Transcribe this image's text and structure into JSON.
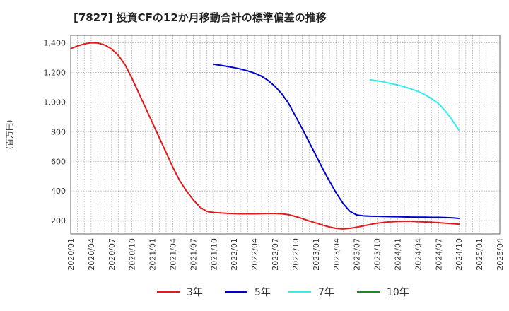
{
  "chart_data": {
    "type": "line",
    "title": "[7827]  投資CFの12か月移動合計の標準偏差の推移",
    "ylabel": "(百万円)",
    "xlabel": "",
    "ylim": [
      110,
      1450
    ],
    "yticks": [
      200,
      400,
      600,
      800,
      1000,
      1200,
      1400
    ],
    "ytick_labels": [
      "200",
      "400",
      "600",
      "800",
      "1,000",
      "1,200",
      "1,400"
    ],
    "x_range": [
      "2020-01",
      "2025-04"
    ],
    "x_ticks": [
      "2020/01",
      "2020/04",
      "2020/07",
      "2020/10",
      "2021/01",
      "2021/04",
      "2021/07",
      "2021/10",
      "2022/01",
      "2022/04",
      "2022/07",
      "2022/10",
      "2023/01",
      "2023/04",
      "2023/07",
      "2023/10",
      "2024/01",
      "2024/04",
      "2024/07",
      "2024/10",
      "2025/01",
      "2025/04"
    ],
    "grid": true,
    "legend_position": "bottom",
    "series": [
      {
        "name": "3年",
        "color": "#e41a1c",
        "x": [
          "2020-01",
          "2020-02",
          "2020-03",
          "2020-04",
          "2020-05",
          "2020-06",
          "2020-07",
          "2020-08",
          "2020-09",
          "2020-10",
          "2020-11",
          "2020-12",
          "2021-01",
          "2021-02",
          "2021-03",
          "2021-04",
          "2021-05",
          "2021-06",
          "2021-07",
          "2021-08",
          "2021-09",
          "2021-10",
          "2021-11",
          "2021-12",
          "2022-01",
          "2022-02",
          "2022-03",
          "2022-04",
          "2022-05",
          "2022-06",
          "2022-07",
          "2022-08",
          "2022-09",
          "2022-10",
          "2022-11",
          "2022-12",
          "2023-01",
          "2023-02",
          "2023-03",
          "2023-04",
          "2023-05",
          "2023-06",
          "2023-07",
          "2023-08",
          "2023-09",
          "2023-10",
          "2023-11",
          "2023-12",
          "2024-01",
          "2024-02",
          "2024-03",
          "2024-04",
          "2024-05",
          "2024-06",
          "2024-07",
          "2024-08",
          "2024-09",
          "2024-10"
        ],
        "values": [
          1360,
          1378,
          1392,
          1400,
          1398,
          1385,
          1358,
          1315,
          1250,
          1160,
          1060,
          960,
          860,
          760,
          660,
          560,
          470,
          400,
          340,
          290,
          262,
          255,
          252,
          249,
          247,
          246,
          246,
          246,
          247,
          248,
          248,
          246,
          240,
          228,
          214,
          198,
          184,
          170,
          157,
          147,
          144,
          148,
          156,
          165,
          174,
          183,
          188,
          192,
          194,
          195,
          195,
          193,
          191,
          189,
          186,
          183,
          180,
          176
        ]
      },
      {
        "name": "5年",
        "color": "#0000cc",
        "x": [
          "2021-10",
          "2021-11",
          "2021-12",
          "2022-01",
          "2022-02",
          "2022-03",
          "2022-04",
          "2022-05",
          "2022-06",
          "2022-07",
          "2022-08",
          "2022-09",
          "2022-10",
          "2022-11",
          "2022-12",
          "2023-01",
          "2023-02",
          "2023-03",
          "2023-04",
          "2023-05",
          "2023-06",
          "2023-07",
          "2023-08",
          "2023-09",
          "2023-10",
          "2023-11",
          "2023-12",
          "2024-01",
          "2024-02",
          "2024-03",
          "2024-04",
          "2024-05",
          "2024-06",
          "2024-07",
          "2024-08",
          "2024-09",
          "2024-10"
        ],
        "values": [
          1255,
          1248,
          1240,
          1232,
          1222,
          1210,
          1195,
          1175,
          1145,
          1105,
          1055,
          990,
          905,
          820,
          730,
          640,
          550,
          465,
          385,
          315,
          262,
          238,
          232,
          230,
          229,
          228,
          227,
          226,
          225,
          224,
          223,
          223,
          222,
          222,
          221,
          219,
          215
        ]
      },
      {
        "name": "7年",
        "color": "#33eeee",
        "x": [
          "2023-09",
          "2023-10",
          "2023-11",
          "2023-12",
          "2024-01",
          "2024-02",
          "2024-03",
          "2024-04",
          "2024-05",
          "2024-06",
          "2024-07",
          "2024-08",
          "2024-09",
          "2024-10"
        ],
        "values": [
          1150,
          1143,
          1135,
          1125,
          1115,
          1103,
          1088,
          1072,
          1050,
          1022,
          990,
          940,
          880,
          810
        ]
      },
      {
        "name": "10年",
        "color": "#228822",
        "x": [],
        "values": []
      }
    ]
  }
}
